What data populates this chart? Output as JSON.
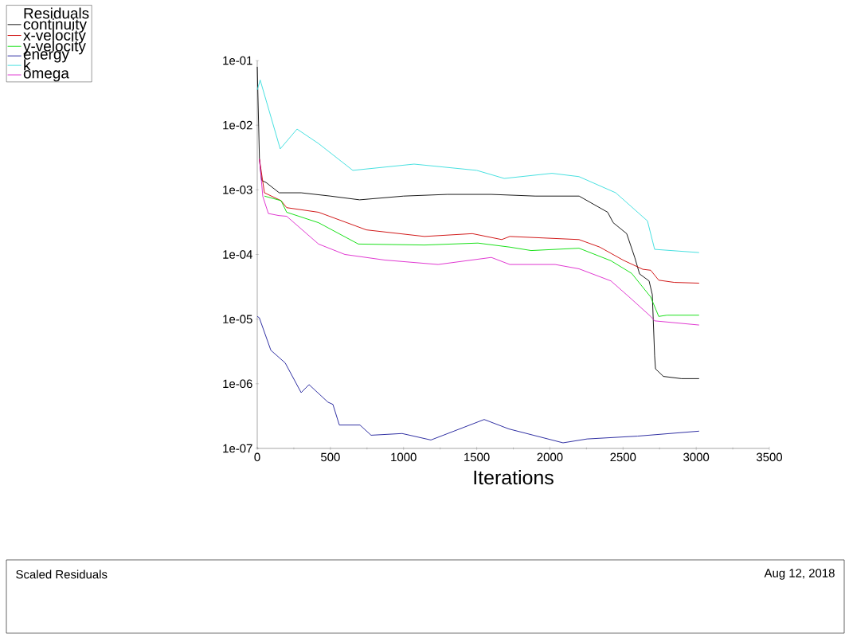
{
  "chart_data": {
    "type": "line",
    "title": "Scaled Residuals",
    "xlabel": "Iterations",
    "legend_title": "Residuals",
    "legend": "top left",
    "log": "y",
    "marker": "none",
    "line_style": "solid",
    "grid": false,
    "annotations": [
      "Aug 12, 2018"
    ],
    "xlim": [
      0,
      3500
    ],
    "xticks": [
      0,
      500,
      1000,
      1500,
      2000,
      2500,
      3000,
      3500
    ],
    "ylim": [
      1e-07,
      0.1
    ],
    "yticks": [
      {
        "value": 1e-07,
        "label": "1e-07"
      },
      {
        "value": 1e-06,
        "label": "1e-06"
      },
      {
        "value": 1e-05,
        "label": "1e-05"
      },
      {
        "value": 0.0001,
        "label": "1e-04"
      },
      {
        "value": 0.001,
        "label": "1e-03"
      },
      {
        "value": 0.01,
        "label": "1e-02"
      },
      {
        "value": 0.1,
        "label": "1e-01"
      }
    ],
    "series": [
      {
        "name": "continuity",
        "color": "#000000",
        "x": [
          0,
          15,
          30,
          60,
          150,
          300,
          500,
          700,
          1000,
          1300,
          1600,
          1900,
          2200,
          2395,
          2433,
          2525,
          2580,
          2613,
          2678,
          2700,
          2716,
          2722,
          2776,
          2900,
          3020
        ],
        "values": [
          0.08,
          0.003,
          0.0014,
          0.0013,
          0.0009,
          0.0009,
          0.0008,
          0.0007,
          0.0008,
          0.00085,
          0.00085,
          0.0008,
          0.0008,
          0.00045,
          0.00031,
          0.00021,
          9e-05,
          5e-05,
          3.9e-05,
          2.4e-05,
          2.7e-06,
          1.7e-06,
          1.3e-06,
          1.2e-06,
          1.2e-06
        ]
      },
      {
        "name": "x-velocity",
        "color": "#cc0000",
        "x": [
          15,
          49,
          163,
          201,
          419,
          746,
          1143,
          1470,
          1671,
          1726,
          2199,
          2341,
          2504,
          2635,
          2689,
          2744,
          2850,
          3020
        ],
        "values": [
          0.003,
          0.0009,
          0.00068,
          0.00053,
          0.00045,
          0.00024,
          0.00019,
          0.00021,
          0.00017,
          0.00019,
          0.00017,
          0.00013,
          8.1e-05,
          5.9e-05,
          5.7e-05,
          4e-05,
          3.7e-05,
          3.6e-05
        ]
      },
      {
        "name": "y-velocity",
        "color": "#00dd00",
        "x": [
          49,
          163,
          201,
          419,
          691,
          1143,
          1508,
          1726,
          1872,
          2199,
          2417,
          2559,
          2689,
          2744,
          2800,
          3020
        ],
        "values": [
          0.0008,
          0.00068,
          0.00045,
          0.00031,
          0.000145,
          0.00014,
          0.00015,
          0.00013,
          0.000115,
          0.000125,
          8e-05,
          5.1e-05,
          2.2e-05,
          1.1e-05,
          1.15e-05,
          1.15e-05
        ]
      },
      {
        "name": "energy",
        "color": "#1a1a99",
        "x": [
          0,
          14,
          93,
          191,
          300,
          354,
          483,
          517,
          561,
          702,
          778,
          990,
          1187,
          1551,
          1720,
          2090,
          2254,
          2600,
          3020
        ],
        "values": [
          1.1e-05,
          1.05e-05,
          3.3e-06,
          2.1e-06,
          7.3e-07,
          9.7e-07,
          5.2e-07,
          4.8e-07,
          2.3e-07,
          2.3e-07,
          1.6e-07,
          1.7e-07,
          1.35e-07,
          2.8e-07,
          2e-07,
          1.22e-07,
          1.4e-07,
          1.55e-07,
          1.85e-07
        ]
      },
      {
        "name": "k",
        "color": "#33dddd",
        "x": [
          0,
          20,
          157,
          272,
          419,
          653,
          1072,
          1500,
          1688,
          2014,
          2199,
          2450,
          2667,
          2716,
          3020
        ],
        "values": [
          0.035,
          0.05,
          0.0043,
          0.0087,
          0.0052,
          0.002,
          0.0025,
          0.002,
          0.0015,
          0.0018,
          0.0016,
          0.0009,
          0.00033,
          0.00012,
          0.000107
        ]
      },
      {
        "name": "omega",
        "color": "#dd22cc",
        "x": [
          15,
          38,
          76,
          147,
          201,
          419,
          599,
          871,
          1236,
          1600,
          1726,
          2036,
          2199,
          2417,
          2542,
          2689,
          2716,
          3020
        ],
        "values": [
          0.003,
          0.00079,
          0.00043,
          0.0004,
          0.00039,
          0.000145,
          0.0001,
          8.2e-05,
          7e-05,
          9e-05,
          7e-05,
          7e-05,
          6e-05,
          3.9e-05,
          2.2e-05,
          1.1e-05,
          9.4e-06,
          8.1e-06
        ]
      }
    ]
  }
}
